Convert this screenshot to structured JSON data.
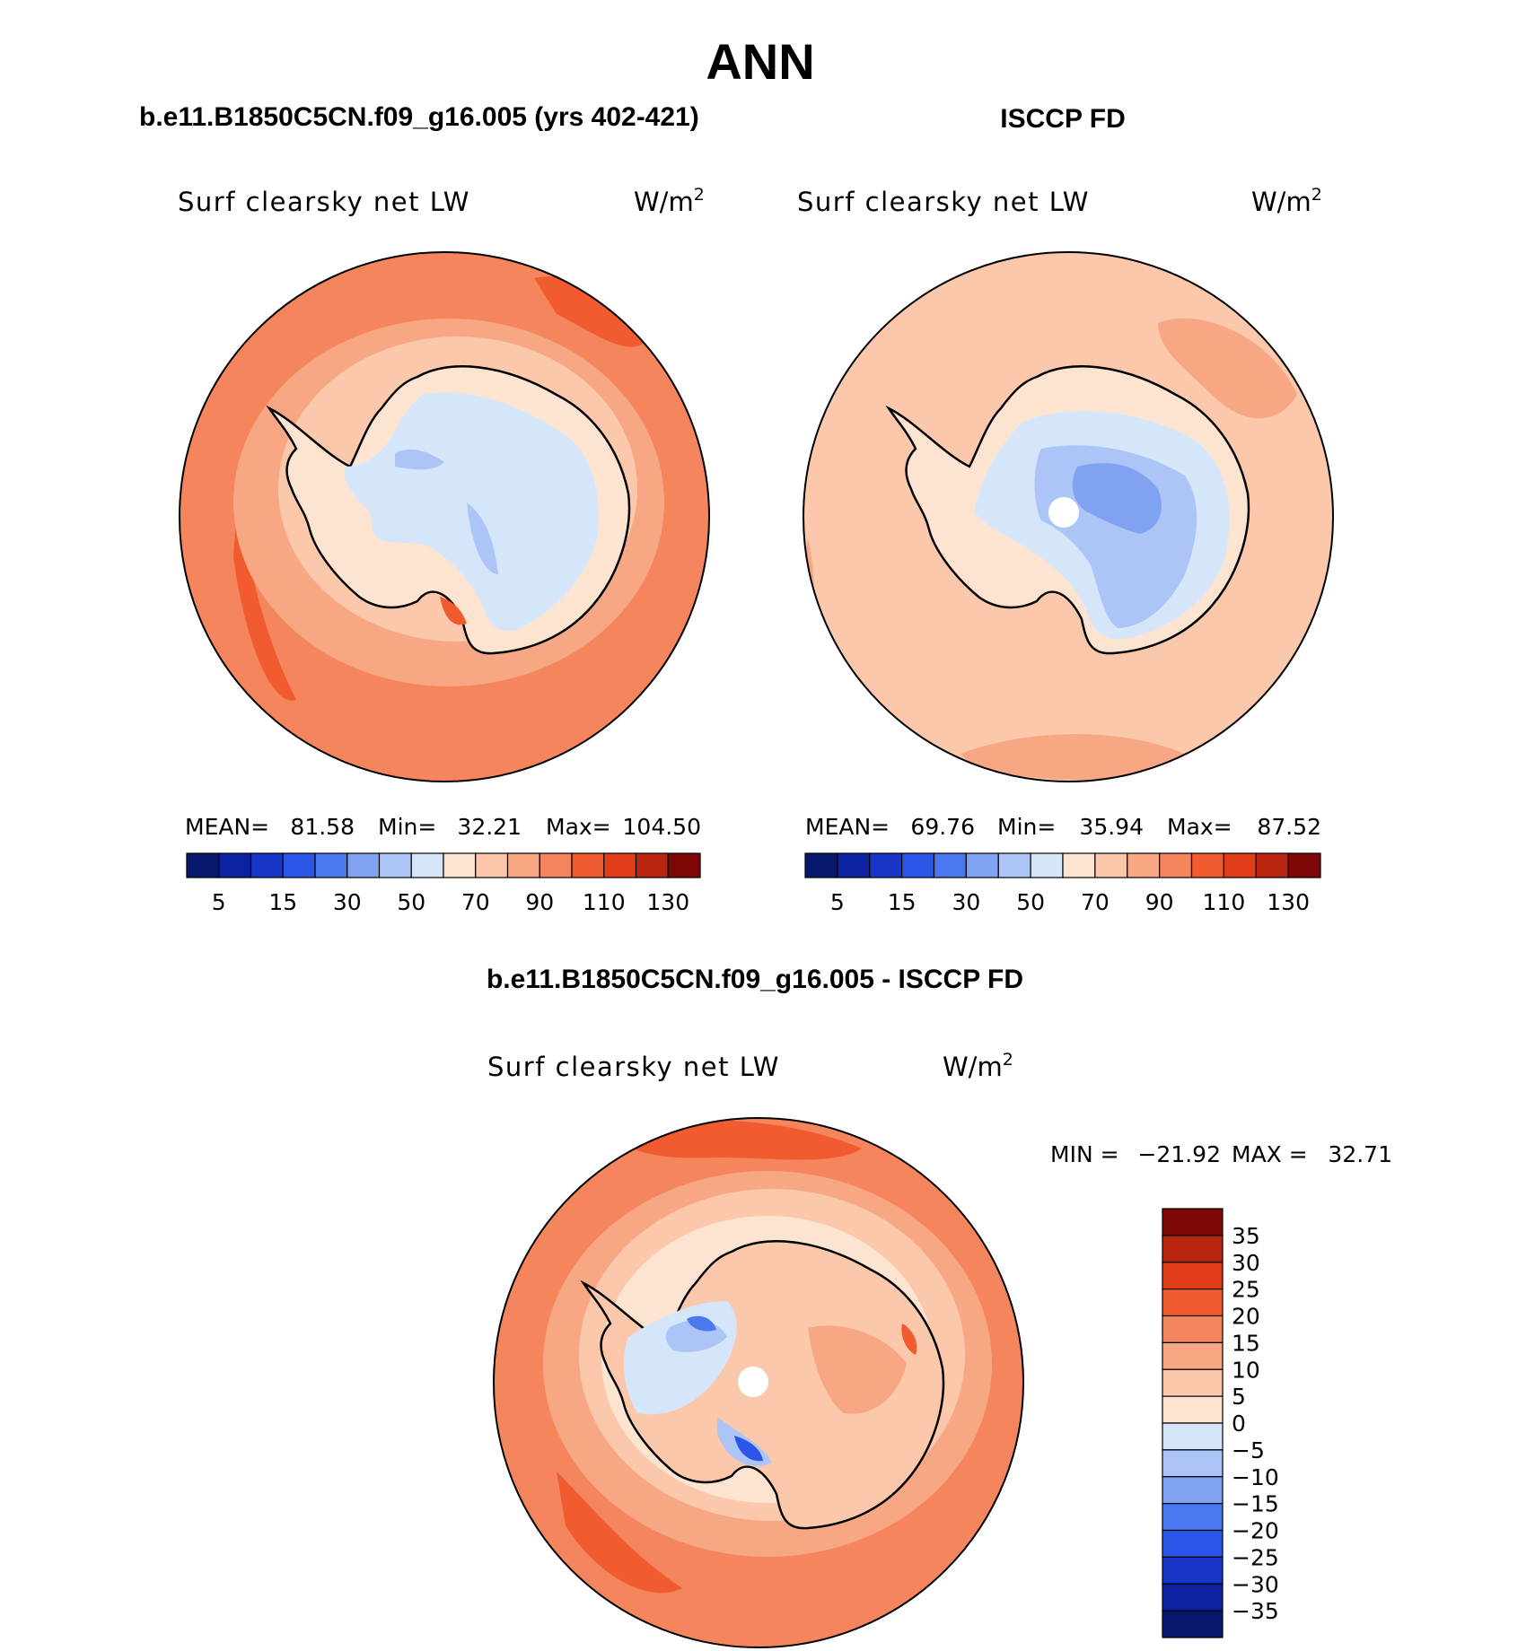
{
  "chart_data": {
    "title": "ANN",
    "panels": [
      {
        "type": "heatmap",
        "projection": "south-polar-stereographic",
        "title": "b.e11.B1850C5CN.f09_g16.005 (yrs 402-421)",
        "variable": "Surf clearsky net LW",
        "units": "W/m",
        "units_exp": "2",
        "stats": {
          "mean_label": "MEAN=",
          "mean": "81.58",
          "min_label": "Min=",
          "min": "32.21",
          "max_label": "Max=",
          "max": "104.50"
        },
        "colorbar": {
          "orientation": "horizontal",
          "tick_labels": [
            "5",
            "15",
            "30",
            "50",
            "70",
            "90",
            "110",
            "130"
          ]
        }
      },
      {
        "type": "heatmap",
        "projection": "south-polar-stereographic",
        "title": "ISCCP FD",
        "variable": "Surf clearsky net LW",
        "units": "W/m",
        "units_exp": "2",
        "stats": {
          "mean_label": "MEAN=",
          "mean": "69.76",
          "min_label": "Min=",
          "min": "35.94",
          "max_label": "Max=",
          "max": "87.52"
        },
        "colorbar": {
          "orientation": "horizontal",
          "tick_labels": [
            "5",
            "15",
            "30",
            "50",
            "70",
            "90",
            "110",
            "130"
          ]
        }
      },
      {
        "type": "heatmap",
        "projection": "south-polar-stereographic",
        "title": "b.e11.B1850C5CN.f09_g16.005 - ISCCP FD",
        "variable": "Surf clearsky net LW",
        "units": "W/m",
        "units_exp": "2",
        "stats": {
          "min_label": "MIN =",
          "min": "−21.92",
          "max_label": "MAX =",
          "max": "32.71"
        },
        "colorbar": {
          "orientation": "vertical",
          "tick_labels": [
            "35",
            "30",
            "25",
            "20",
            "15",
            "10",
            "5",
            "0",
            "−5",
            "−10",
            "−15",
            "−20",
            "−25",
            "−30",
            "−35"
          ]
        }
      }
    ],
    "abs_colors": [
      "#08186e",
      "#0c22a0",
      "#1636c8",
      "#2a55e6",
      "#4a78ee",
      "#7fa2f2",
      "#adc4f6",
      "#d6e6fa",
      "#fde4d0",
      "#fbc8ac",
      "#f8a784",
      "#f5855c",
      "#f25b30",
      "#e03c18",
      "#b82610",
      "#7e0808"
    ],
    "diff_colors": [
      "#7e0808",
      "#b82610",
      "#e03c18",
      "#f25b30",
      "#f5855c",
      "#f8a784",
      "#fbc8ac",
      "#fde4d0",
      "#d6e6fa",
      "#adc4f6",
      "#7fa2f2",
      "#4a78ee",
      "#2a55e6",
      "#1636c8",
      "#0c22a0",
      "#08186e"
    ]
  }
}
